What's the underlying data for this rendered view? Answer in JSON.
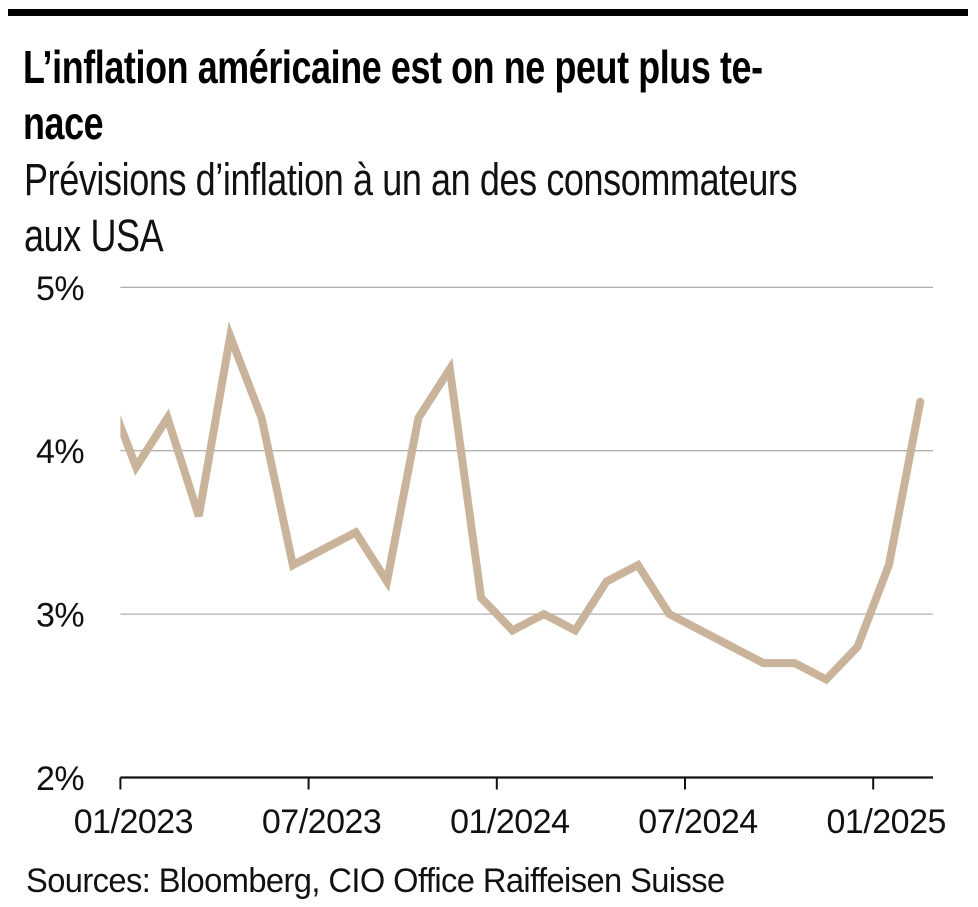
{
  "top_bar": {
    "color": "#000000"
  },
  "header": {
    "title_lines": [
      "L’inflation américaine est on ne peut plus te-",
      "nace"
    ],
    "subtitle_lines": [
      "Prévisions d’inflation à un an des consommateurs",
      "aux USA"
    ]
  },
  "footer": {
    "source_text": "Sources: Bloomberg, CIO Office Raiffeisen Suisse"
  },
  "chart_data": {
    "type": "line",
    "title": "L’inflation américaine est on ne peut plus tenace",
    "subtitle": "Prévisions d’inflation à un an des consommateurs aux USA",
    "unit": "%",
    "months": [
      "12/2022",
      "01/2023",
      "02/2023",
      "03/2023",
      "04/2023",
      "05/2023",
      "06/2023",
      "07/2023",
      "08/2023",
      "09/2023",
      "10/2023",
      "11/2023",
      "12/2023",
      "01/2024",
      "02/2024",
      "03/2024",
      "04/2024",
      "05/2024",
      "06/2024",
      "07/2024",
      "08/2024",
      "09/2024",
      "10/2024",
      "11/2024",
      "12/2024",
      "01/2025",
      "02/2025"
    ],
    "values": [
      4.4,
      3.9,
      4.2,
      3.6,
      4.7,
      4.2,
      3.3,
      3.4,
      3.5,
      3.2,
      4.2,
      4.5,
      3.1,
      2.9,
      3.0,
      2.9,
      3.2,
      3.3,
      3.0,
      2.9,
      2.8,
      2.7,
      2.7,
      2.6,
      2.8,
      3.3,
      4.3
    ],
    "x_tick_labels": [
      "01/2023",
      "07/2023",
      "01/2024",
      "07/2024",
      "01/2025"
    ],
    "y_tick_labels": [
      "5%",
      "4%",
      "3%",
      "2%"
    ],
    "y_ticks": [
      5,
      4,
      3,
      2
    ],
    "ylim": [
      2,
      5
    ],
    "x_visible_range": [
      "01/2023",
      "02/2025"
    ],
    "grid": "horizontal-light-gray",
    "legend": "none",
    "line_color": "#c9b49b",
    "axis_color": "#111111",
    "grid_color": "#b3b1ae"
  }
}
